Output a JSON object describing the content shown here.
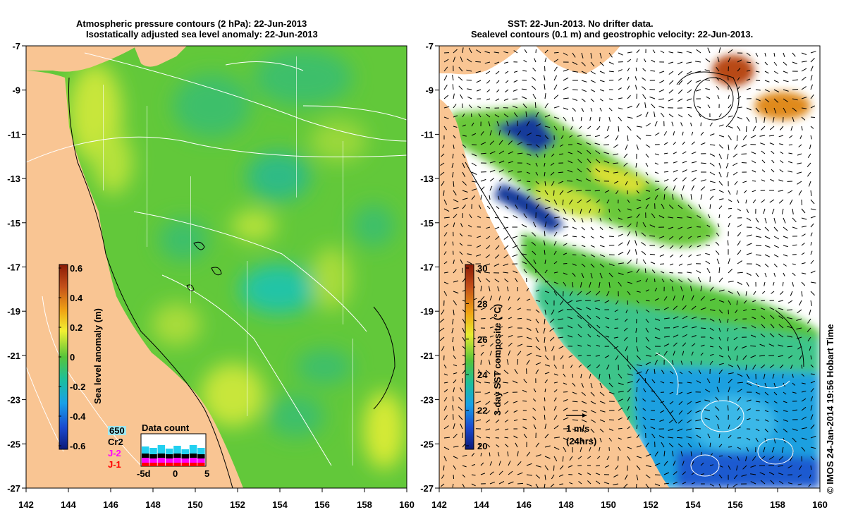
{
  "left_panel": {
    "title_line1": "Atmospheric pressure contours (2 hPa): 22-Jun-2013",
    "title_line2": "Isostatically adjusted sea level anomaly: 22-Jun-2013",
    "colorbar": {
      "label": "Sea level anomaly (m)",
      "ticks": [
        "0.6",
        "0.4",
        "0.2",
        "0",
        "-0.2",
        "-0.4",
        "-0.6"
      ]
    },
    "legend": {
      "items": [
        "650",
        "Cr2",
        "J-2",
        "J-1"
      ],
      "colors": [
        "#22d0f0",
        "#000000",
        "#ff00ff",
        "#ff0000"
      ]
    },
    "data_count": {
      "title": "Data count",
      "x_labels": [
        "-5d",
        "0",
        "5"
      ]
    }
  },
  "right_panel": {
    "title_line1": "SST: 22-Jun-2013. No drifter data.",
    "title_line2": "Sealevel contours (0.1 m) and geostrophic velocity: 22-Jun-2013.",
    "colorbar": {
      "label": "3-day SST composite (°C)",
      "ticks": [
        "30",
        "28",
        "26",
        "24",
        "22",
        "20"
      ]
    },
    "scale_arrow": {
      "line1": "1 m/s",
      "line2": "(24hrs)"
    }
  },
  "axes": {
    "x_ticks": [
      "142",
      "144",
      "146",
      "148",
      "150",
      "152",
      "154",
      "156",
      "158",
      "160"
    ],
    "y_ticks": [
      "-7",
      "-9",
      "-11",
      "-13",
      "-15",
      "-17",
      "-19",
      "-21",
      "-23",
      "-25",
      "-27"
    ]
  },
  "footer": {
    "stamp": "© IMOS 24-Jan-2014 19:56 Hobart Time"
  },
  "colors": {
    "land": "#f9c593",
    "sea_green": "#62c83a",
    "sea_blue": "#2b8fe0"
  }
}
